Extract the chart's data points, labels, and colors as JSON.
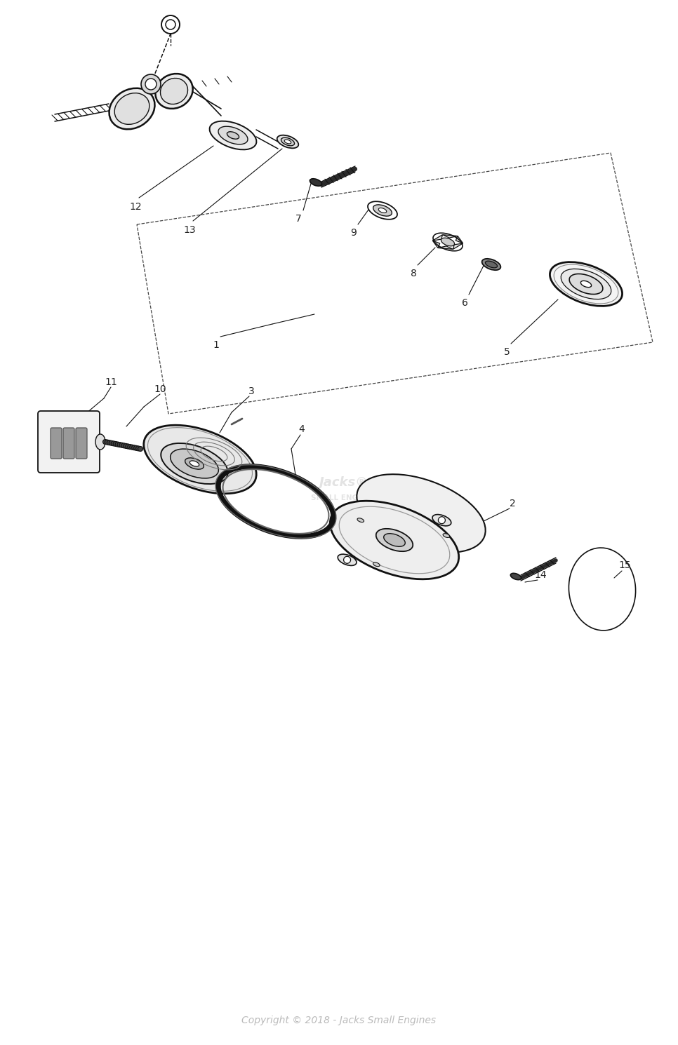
{
  "bg_color": "#ffffff",
  "lc": "#111111",
  "label_color": "#222222",
  "copyright_text": "Copyright © 2018 - Jacks Small Engines",
  "copyright_color": "#bbbbbb",
  "fig_w": 9.66,
  "fig_h": 14.9,
  "dpi": 100
}
